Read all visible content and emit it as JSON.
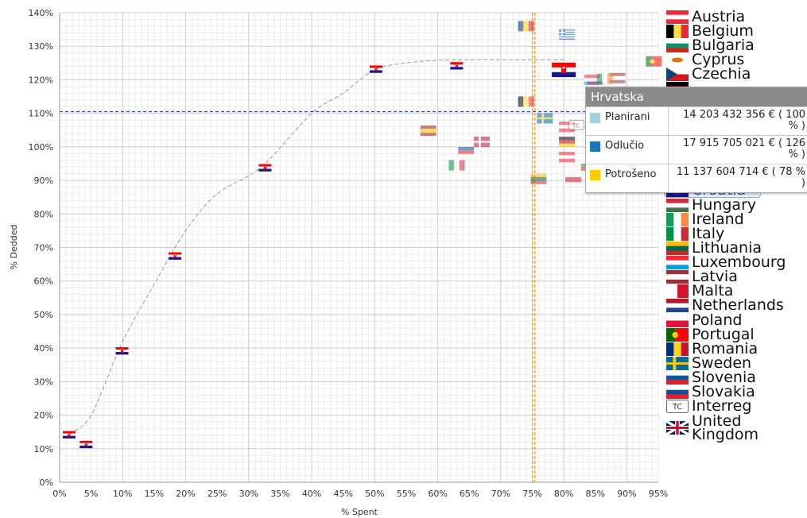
{
  "chart_data": {
    "type": "scatter",
    "xlabel": "% Spent",
    "ylabel": "% Dedded",
    "x_ticks": [
      "0%",
      "5%",
      "10%",
      "15%",
      "20%",
      "25%",
      "30%",
      "35%",
      "40%",
      "45%",
      "50%",
      "55%",
      "60%",
      "65%",
      "70%",
      "75%",
      "80%",
      "85%",
      "90%",
      "95%"
    ],
    "y_ticks": [
      "0%",
      "10%",
      "20%",
      "30%",
      "40%",
      "50%",
      "60%",
      "70%",
      "80%",
      "90%",
      "100%",
      "110%",
      "120%",
      "130%",
      "140%"
    ],
    "xlim": [
      0,
      95
    ],
    "ylim": [
      0,
      140
    ],
    "grid": true,
    "reference_lines": {
      "x": 75.3,
      "y": 110.5,
      "x_color": "#f0a020",
      "y_color": "#3344aa"
    },
    "trend_curve": [
      [
        1.5,
        14.5
      ],
      [
        5,
        20
      ],
      [
        10,
        42
      ],
      [
        15,
        59
      ],
      [
        20,
        75
      ],
      [
        25,
        86
      ],
      [
        32,
        94
      ],
      [
        40,
        110
      ],
      [
        45,
        116
      ],
      [
        50,
        123
      ],
      [
        55,
        125
      ],
      [
        60,
        125.8
      ],
      [
        65,
        126
      ],
      [
        70,
        126
      ],
      [
        75,
        126
      ],
      [
        80,
        126
      ]
    ],
    "points": [
      {
        "flag": "croatia",
        "x": 1.5,
        "y": 14.2
      },
      {
        "flag": "croatia",
        "x": 4.2,
        "y": 11.3
      },
      {
        "flag": "croatia",
        "x": 9.9,
        "y": 39.2
      },
      {
        "flag": "croatia",
        "x": 18.3,
        "y": 67.5
      },
      {
        "flag": "croatia",
        "x": 32.6,
        "y": 93.8
      },
      {
        "flag": "croatia",
        "x": 50.2,
        "y": 123.2
      },
      {
        "flag": "croatia",
        "x": 63,
        "y": 124.2
      },
      {
        "flag": "romania",
        "x": 74,
        "y": 136
      },
      {
        "flag": "greece",
        "x": 80.5,
        "y": 133.5
      },
      {
        "flag": "portugal",
        "x": 94.3,
        "y": 125.5
      },
      {
        "flag": "croatia",
        "x": 80,
        "y": 123
      },
      {
        "flag": "belgium",
        "x": 74,
        "y": 113.5
      },
      {
        "flag": "sweden",
        "x": 77,
        "y": 108.5
      },
      {
        "flag": "spain",
        "x": 58.5,
        "y": 104.8
      },
      {
        "flag": "denmark",
        "x": 67,
        "y": 101.5
      },
      {
        "flag": "slovakia",
        "x": 64.5,
        "y": 99.5
      },
      {
        "flag": "italy",
        "x": 63,
        "y": 94.5
      },
      {
        "flag": "lithuania",
        "x": 76,
        "y": 90.5
      },
      {
        "flag": "germany",
        "x": 80.5,
        "y": 101.5
      },
      {
        "flag": "austria",
        "x": 80.5,
        "y": 97
      },
      {
        "flag": "poland",
        "x": 81.5,
        "y": 91
      },
      {
        "flag": "austria",
        "x": 80.5,
        "y": 106
      },
      {
        "flag": "interreg",
        "x": 82,
        "y": 106.5
      },
      {
        "flag": "luxembourg",
        "x": 84.5,
        "y": 120
      },
      {
        "flag": "hungary",
        "x": 85,
        "y": 118
      },
      {
        "flag": "latvia",
        "x": 88.5,
        "y": 120.5
      },
      {
        "flag": "ireland",
        "x": 86.5,
        "y": 120.3
      },
      {
        "flag": "bulgaria",
        "x": 84,
        "y": 94.5
      }
    ],
    "legend": [
      {
        "flag": "austria",
        "label": "Austria"
      },
      {
        "flag": "belgium",
        "label": "Belgium"
      },
      {
        "flag": "bulgaria",
        "label": "Bulgaria"
      },
      {
        "flag": "cyprus",
        "label": "Cyprus"
      },
      {
        "flag": "czechia",
        "label": "Czechia"
      },
      {
        "flag": "germany",
        "label": ""
      },
      {
        "flag": "denmark",
        "label": ""
      },
      {
        "flag": "estonia",
        "label": ""
      },
      {
        "flag": "spain",
        "label": ""
      },
      {
        "flag": "finland",
        "label": ""
      },
      {
        "flag": "france",
        "label": "France"
      },
      {
        "flag": "greece",
        "label": "Greece"
      },
      {
        "flag": "croatia",
        "label": "Croatia",
        "selected": true
      },
      {
        "flag": "hungary",
        "label": "Hungary"
      },
      {
        "flag": "ireland",
        "label": "Ireland"
      },
      {
        "flag": "italy",
        "label": "Italy"
      },
      {
        "flag": "lithuania",
        "label": "Lithuania"
      },
      {
        "flag": "luxembourg",
        "label": "Luxembourg"
      },
      {
        "flag": "latvia",
        "label": "Latvia"
      },
      {
        "flag": "malta",
        "label": "Malta"
      },
      {
        "flag": "netherlands",
        "label": "Netherlands"
      },
      {
        "flag": "poland",
        "label": "Poland"
      },
      {
        "flag": "portugal",
        "label": "Portugal"
      },
      {
        "flag": "romania",
        "label": "Romania"
      },
      {
        "flag": "sweden",
        "label": "Sweden"
      },
      {
        "flag": "slovenia",
        "label": "Slovenia"
      },
      {
        "flag": "slovakia",
        "label": "Slovakia"
      },
      {
        "flag": "interreg",
        "label": "Interreg"
      },
      {
        "flag": "uk",
        "label": "United Kingdom"
      }
    ]
  },
  "tooltip": {
    "title": "Hrvatska",
    "rows": [
      {
        "name": "Planirani",
        "color": "#a6cee3",
        "value": "14 203 432 356 €",
        "pct": "( 100 % )"
      },
      {
        "name": "Odlučio",
        "color": "#1f78b4",
        "value": "17 915 705 021 €",
        "pct": "( 126 % )"
      },
      {
        "name": "Potrošeno",
        "color": "#ffcc00",
        "value": "11 137 604 714 €",
        "pct": "( 78 % )"
      }
    ]
  }
}
